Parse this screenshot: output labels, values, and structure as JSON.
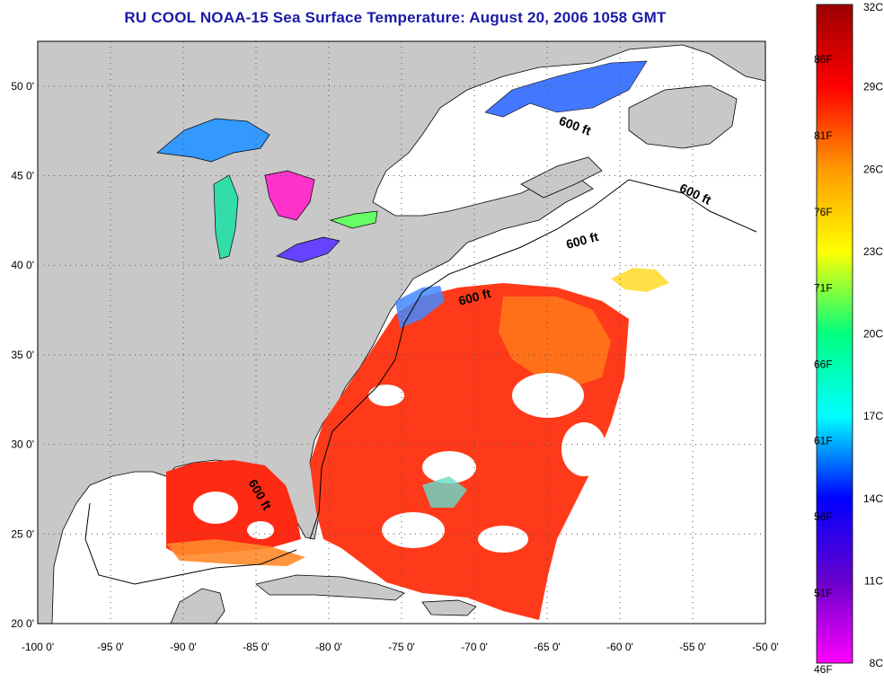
{
  "title": "RU COOL  NOAA-15  Sea Surface Temperature:  August 20, 2006 1058 GMT",
  "map": {
    "lon_ticks": [
      "-100 0'",
      "-95 0'",
      "-90 0'",
      "-85 0'",
      "-80 0'",
      "-75 0'",
      "-70 0'",
      "-65 0'",
      "-60 0'",
      "-55 0'",
      "-50 0'"
    ],
    "lat_ticks": [
      "50 0'",
      "45 0'",
      "40 0'",
      "35 0'",
      "30 0'",
      "25 0'",
      "20 0'"
    ],
    "lon_range": [
      -100,
      -50
    ],
    "lat_range": [
      20,
      52.5
    ],
    "depth_labels": [
      "600 ft",
      "600 ft",
      "600 ft",
      "600 ft",
      "600 ft"
    ],
    "colors": {
      "land": "#c8c8c8",
      "no_data": "#ffffff"
    }
  },
  "colorbar": {
    "fahrenheit_labels": [
      "86F",
      "81F",
      "76F",
      "71F",
      "66F",
      "61F",
      "56F",
      "51F",
      "46F"
    ],
    "celsius_labels": [
      "32C",
      "29C",
      "26C",
      "23C",
      "20C",
      "17C",
      "14C",
      "11C",
      "8C"
    ],
    "range_c": [
      8,
      32
    ],
    "stops": [
      "#ff00ff",
      "#6600cc",
      "#0000ff",
      "#00ffff",
      "#00ff80",
      "#ffff00",
      "#ff9900",
      "#ff0000",
      "#990000"
    ]
  }
}
